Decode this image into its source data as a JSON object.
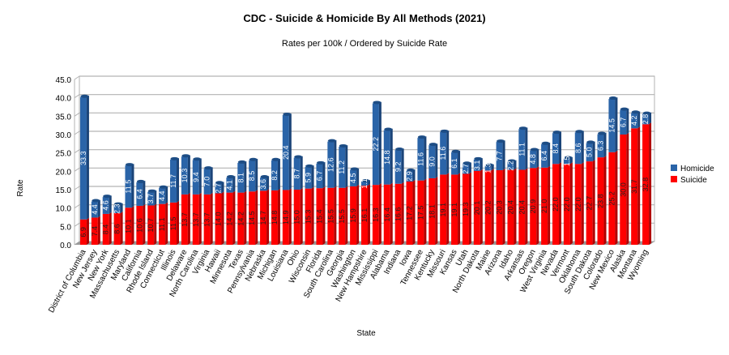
{
  "chart_data": {
    "type": "bar",
    "stacked": true,
    "title": "CDC - Suicide & Homicide By All Methods (2021)",
    "subtitle": "Rates per 100k / Ordered by Suicide Rate",
    "xlabel": "State",
    "ylabel": "Rate",
    "ylim": [
      0,
      45
    ],
    "yticks": [
      "0.0",
      "5.0",
      "10.0",
      "15.0",
      "20.0",
      "25.0",
      "30.0",
      "35.0",
      "40.0",
      "45.0"
    ],
    "grid": true,
    "legend_position": "right",
    "categories": [
      "District of Columbia",
      "New Jersey",
      "New York",
      "Massachusetts",
      "Maryland",
      "California",
      "Rhode Island",
      "Connecticut",
      "Illinois",
      "Delaware",
      "North Carolina",
      "Virginia",
      "Hawaii",
      "Minnesota",
      "Texas",
      "Pennsylvania",
      "Nebraska",
      "Michigan",
      "Louisiana",
      "Ohio",
      "Wisconsin",
      "Florida",
      "South Carolina",
      "Georgia",
      "Washington",
      "New Hampshire",
      "Mississippi",
      "Alabama",
      "Indiana",
      "Iowa",
      "Tennessee",
      "Kentucky",
      "Missouri",
      "Kansas",
      "Utah",
      "North Dakota",
      "Maine",
      "Arizona",
      "Idaho",
      "Arkansas",
      "Oregon",
      "West Virginia",
      "Nevada",
      "Vermont",
      "Oklahoma",
      "South Dakota",
      "Colorado",
      "New Mexico",
      "Alaska",
      "Montana",
      "Wyoming"
    ],
    "series": [
      {
        "name": "Suicide",
        "color": "#ff0000",
        "values": [
          6.9,
          7.4,
          8.4,
          8.6,
          10.1,
          10.6,
          10.7,
          11.1,
          11.5,
          13.7,
          13.7,
          13.7,
          14.0,
          14.2,
          14.2,
          14.5,
          14.7,
          14.8,
          14.9,
          15.0,
          15.3,
          15.4,
          15.5,
          15.5,
          15.9,
          16.1,
          16.3,
          16.4,
          16.6,
          17.2,
          17.5,
          18.1,
          19.1,
          19.1,
          19.3,
          20.1,
          20.2,
          20.3,
          20.4,
          20.4,
          20.9,
          21.0,
          22.0,
          22.0,
          22.0,
          22.7,
          23.8,
          25.2,
          30.0,
          31.7,
          32.8
        ]
      },
      {
        "name": "Homicide",
        "color": "#2a64a8",
        "values": [
          33.3,
          4.4,
          4.6,
          2.3,
          11.5,
          6.4,
          3.7,
          4.4,
          11.7,
          10.3,
          9.4,
          7.0,
          2.7,
          4.1,
          8.1,
          8.5,
          3.6,
          8.2,
          20.4,
          8.7,
          5.9,
          6.7,
          12.6,
          11.2,
          4.5,
          1.1,
          22.2,
          14.8,
          9.2,
          2.9,
          11.6,
          9.0,
          11.6,
          6.1,
          2.7,
          3.1,
          1.3,
          7.7,
          2.2,
          11.1,
          4.8,
          6.4,
          8.4,
          1.5,
          8.6,
          5.0,
          6.3,
          14.5,
          6.7,
          4.2,
          2.8
        ]
      }
    ]
  }
}
